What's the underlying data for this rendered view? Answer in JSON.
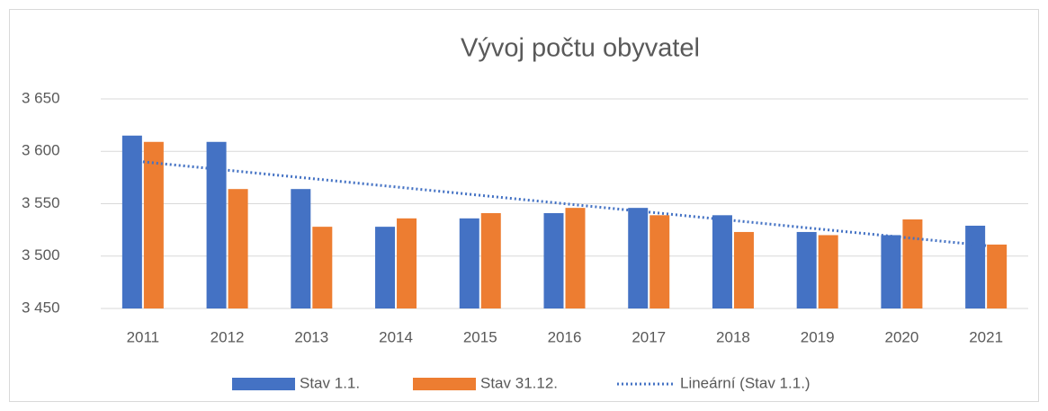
{
  "chart_data": {
    "type": "bar",
    "title": "Vývoj počtu obyvatel",
    "categories": [
      "2011",
      "2012",
      "2013",
      "2014",
      "2015",
      "2016",
      "2017",
      "2018",
      "2019",
      "2020",
      "2021"
    ],
    "series": [
      {
        "name": "Stav 1.1.",
        "color": "#4472c4",
        "values": [
          3615,
          3609,
          3564,
          3528,
          3536,
          3541,
          3546,
          3539,
          3523,
          3520,
          3529
        ]
      },
      {
        "name": "Stav 31.12.",
        "color": "#ed7d31",
        "values": [
          3609,
          3564,
          3528,
          3536,
          3541,
          3546,
          3539,
          3523,
          3520,
          3535,
          3511
        ]
      },
      {
        "name": "Lineární (Stav 1.1.)",
        "color": "#4472c4",
        "type": "line",
        "style": "dotted",
        "values": [
          3590,
          3582,
          3574,
          3566,
          3558,
          3550,
          3542,
          3534,
          3526,
          3518,
          3510
        ]
      }
    ],
    "ylim": [
      3450,
      3650
    ],
    "yticks": [
      {
        "value": 3450,
        "label": "3 450"
      },
      {
        "value": 3500,
        "label": "3 500"
      },
      {
        "value": 3550,
        "label": "3 550"
      },
      {
        "value": 3600,
        "label": "3 600"
      },
      {
        "value": 3650,
        "label": "3 650"
      }
    ],
    "grid": true,
    "legend": "bottom"
  }
}
